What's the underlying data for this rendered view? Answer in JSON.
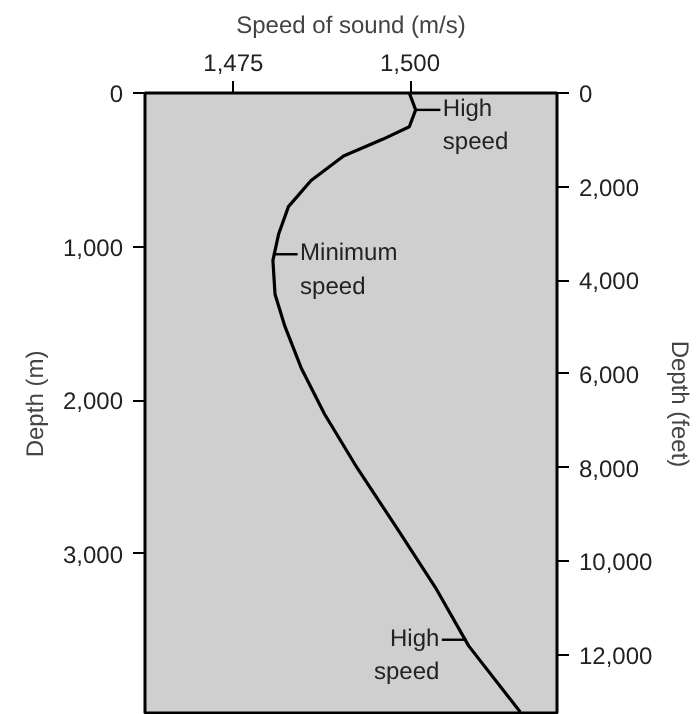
{
  "chart_data": {
    "type": "line",
    "xlabel": "Speed of sound (m/s)",
    "ylabel": "Depth (m)",
    "y2label": "Depth (feet)",
    "series": [
      {
        "color": "#000000",
        "x": [
          1499.9,
          1500.8,
          1499.9,
          1496.2,
          1490.6,
          1486.0,
          1482.8,
          1481.4,
          1480.6,
          1480.9,
          1482.3,
          1484.6,
          1487.9,
          1492.5,
          1498.1,
          1503.6,
          1508.3,
          1515.6
        ],
        "values": [
          0,
          110,
          220,
          300,
          410,
          570,
          740,
          920,
          1090,
          1310,
          1520,
          1790,
          2090,
          2440,
          2830,
          3220,
          3600,
          4030
        ]
      }
    ],
    "xlim": [
      1462.5,
      1520.8
    ],
    "xticks": [
      {
        "value": 1475,
        "label": "1,475"
      },
      {
        "value": 1500,
        "label": "1,500"
      }
    ],
    "ylim": [
      4050,
      0
    ],
    "yticks": [
      0,
      {
        "value": 1000,
        "label": "1,000"
      },
      {
        "value": 2000,
        "label": "2,000"
      },
      {
        "value": 3000,
        "label": "3,000"
      }
    ],
    "y2lim": [
      13287,
      0
    ],
    "y2ticks": [
      0,
      {
        "value": 2000,
        "label": "2,000"
      },
      {
        "value": 4000,
        "label": "4,000"
      },
      {
        "value": 6000,
        "label": "6,000"
      },
      {
        "value": 8000,
        "label": "8,000"
      },
      {
        "value": 10000,
        "label": "10,000"
      },
      {
        "value": 12000,
        "label": "12,000"
      }
    ],
    "annotations": [
      {
        "text": "High speed",
        "x": 1500.8,
        "y": 110
      },
      {
        "text": "Minimum speed",
        "x": 1480.6,
        "y": 1050
      },
      {
        "text": "High speed",
        "x": 1508.0,
        "y": 3560
      }
    ],
    "grid": false,
    "marker": "none",
    "line_style": "solid"
  }
}
